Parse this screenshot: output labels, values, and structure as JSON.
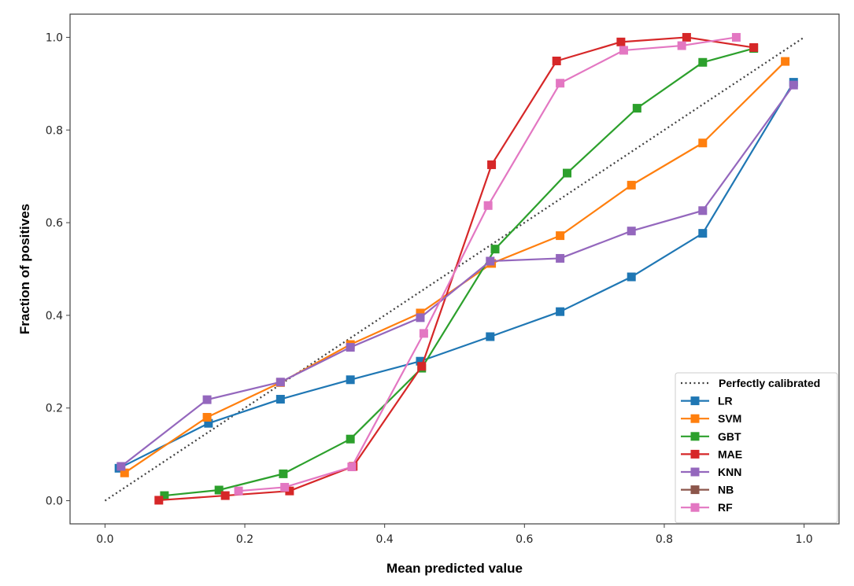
{
  "chart_data": {
    "type": "line",
    "xlabel": "Mean predicted value",
    "ylabel": "Fraction of positives",
    "xlim": [
      -0.05,
      1.05
    ],
    "ylim": [
      -0.05,
      1.05
    ],
    "x_ticks": [
      "0.0",
      "0.2",
      "0.4",
      "0.6",
      "0.8",
      "1.0"
    ],
    "y_ticks": [
      "0.0",
      "0.2",
      "0.4",
      "0.6",
      "0.8",
      "1.0"
    ],
    "grid": false,
    "legend_position": "lower-right",
    "reference": {
      "name": "Perfectly calibrated",
      "color": "#404040",
      "style": "dotted",
      "points": [
        [
          0.0,
          0.0
        ],
        [
          1.0,
          1.0
        ]
      ]
    },
    "series": [
      {
        "name": "LR",
        "color": "#1f77b4",
        "points": [
          [
            0.02,
            0.07
          ],
          [
            0.148,
            0.167
          ],
          [
            0.251,
            0.219
          ],
          [
            0.351,
            0.261
          ],
          [
            0.451,
            0.301
          ],
          [
            0.551,
            0.354
          ],
          [
            0.651,
            0.408
          ],
          [
            0.753,
            0.483
          ],
          [
            0.855,
            0.577
          ],
          [
            0.985,
            0.903
          ]
        ]
      },
      {
        "name": "SVM",
        "color": "#ff7f0e",
        "points": [
          [
            0.028,
            0.06
          ],
          [
            0.146,
            0.18
          ],
          [
            0.251,
            0.255
          ],
          [
            0.351,
            0.337
          ],
          [
            0.451,
            0.405
          ],
          [
            0.553,
            0.512
          ],
          [
            0.651,
            0.572
          ],
          [
            0.753,
            0.681
          ],
          [
            0.855,
            0.772
          ],
          [
            0.973,
            0.948
          ]
        ]
      },
      {
        "name": "GBT",
        "color": "#2ca02c",
        "points": [
          [
            0.085,
            0.011
          ],
          [
            0.163,
            0.023
          ],
          [
            0.255,
            0.058
          ],
          [
            0.351,
            0.133
          ],
          [
            0.453,
            0.286
          ],
          [
            0.558,
            0.543
          ],
          [
            0.661,
            0.707
          ],
          [
            0.761,
            0.847
          ],
          [
            0.855,
            0.946
          ],
          [
            0.928,
            0.976
          ]
        ]
      },
      {
        "name": "MAE",
        "color": "#d62728",
        "points": [
          [
            0.077,
            0.001
          ],
          [
            0.172,
            0.011
          ],
          [
            0.264,
            0.021
          ],
          [
            0.355,
            0.074
          ],
          [
            0.453,
            0.29
          ],
          [
            0.553,
            0.725
          ],
          [
            0.646,
            0.949
          ],
          [
            0.738,
            0.99
          ],
          [
            0.832,
            1.0
          ],
          [
            0.928,
            0.978
          ]
        ]
      },
      {
        "name": "KNN",
        "color": "#9467bd",
        "points": [
          [
            0.023,
            0.074
          ],
          [
            0.146,
            0.218
          ],
          [
            0.251,
            0.256
          ],
          [
            0.351,
            0.331
          ],
          [
            0.451,
            0.395
          ],
          [
            0.551,
            0.517
          ],
          [
            0.651,
            0.523
          ],
          [
            0.753,
            0.582
          ],
          [
            0.855,
            0.626
          ],
          [
            0.985,
            0.897
          ]
        ]
      },
      {
        "name": "NB",
        "color": "#8c564b",
        "points": []
      },
      {
        "name": "RF",
        "color": "#e377c2",
        "points": [
          [
            0.191,
            0.021
          ],
          [
            0.257,
            0.029
          ],
          [
            0.353,
            0.073
          ],
          [
            0.456,
            0.361
          ],
          [
            0.548,
            0.637
          ],
          [
            0.651,
            0.901
          ],
          [
            0.742,
            0.972
          ],
          [
            0.825,
            0.982
          ],
          [
            0.903,
            1.0
          ]
        ]
      }
    ]
  }
}
